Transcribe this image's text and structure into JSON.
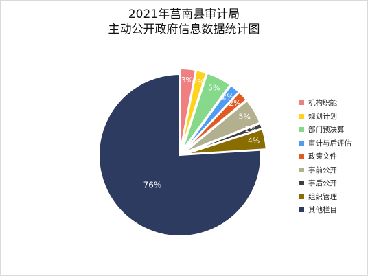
{
  "chart_data": {
    "type": "pie",
    "title": "2021年莒南县审计局",
    "subtitle": "主动公开政府信息数据统计图",
    "legend_position": "right",
    "slices": [
      {
        "name": "机构职能",
        "value": 3,
        "label": "3%",
        "color": "#f08080",
        "exploded": true
      },
      {
        "name": "规划计划",
        "value": 2,
        "label": "2%",
        "color": "#ffd21e",
        "exploded": true
      },
      {
        "name": "部门预决算",
        "value": 5,
        "label": "5%",
        "color": "#86d98a",
        "exploded": true
      },
      {
        "name": "审计与后评估",
        "value": 2,
        "label": "2%",
        "color": "#4f9df0",
        "exploded": true
      },
      {
        "name": "政策文件",
        "value": 2,
        "label": "2%",
        "color": "#e05a22",
        "exploded": true
      },
      {
        "name": "事前公开",
        "value": 5,
        "label": "5%",
        "color": "#b3b08f",
        "exploded": true
      },
      {
        "name": "事后公开",
        "value": 1,
        "label": "1%",
        "color": "#3f3f42",
        "exploded": true
      },
      {
        "name": "组织管理",
        "value": 4,
        "label": "4%",
        "color": "#8a6d00",
        "exploded": true
      },
      {
        "name": "其他栏目",
        "value": 76,
        "label": "76%",
        "color": "#2e3b60",
        "exploded": false
      }
    ]
  }
}
